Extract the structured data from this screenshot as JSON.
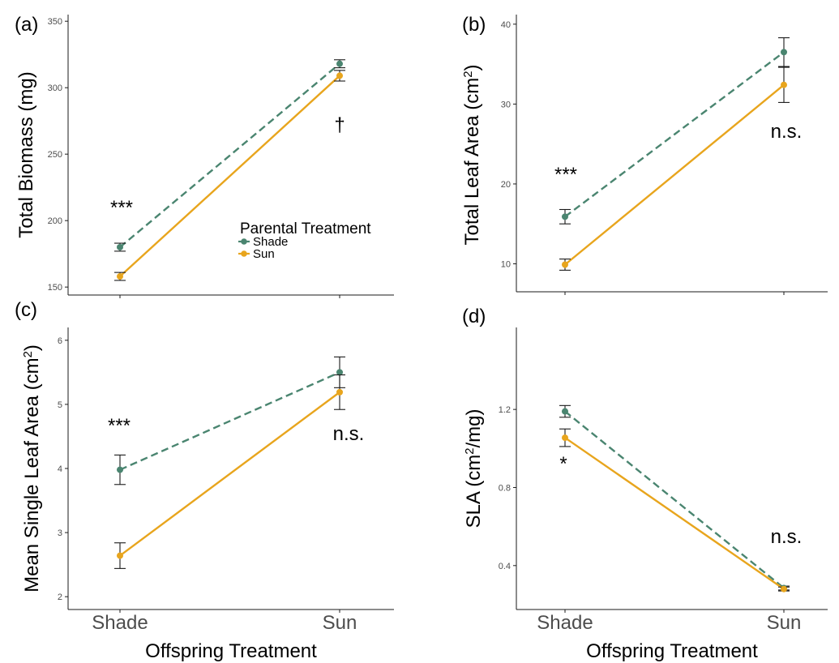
{
  "colors": {
    "Shade": "#4a8570",
    "Sun": "#e8a51d",
    "errorbar": "#1a1a1a",
    "axis": "#1a1a1a"
  },
  "legend": {
    "title": "Parental Treatment",
    "items": [
      "Shade",
      "Sun"
    ]
  },
  "x_axis_title": "Offspring Treatment",
  "chart_data": [
    {
      "tag": "(a)",
      "type": "line",
      "ylabel": "Total Biomass (mg)",
      "categories": [
        "Shade",
        "Sun"
      ],
      "ylim": [
        144,
        355
      ],
      "yticks": [
        150,
        200,
        250,
        300,
        350
      ],
      "series": [
        {
          "name": "Shade",
          "values": [
            180,
            318
          ],
          "err": [
            3,
            3
          ],
          "dash": true
        },
        {
          "name": "Sun",
          "values": [
            158,
            309
          ],
          "err": [
            3,
            4
          ],
          "dash": false
        }
      ],
      "annotations": [
        "***",
        "†"
      ],
      "legend": true,
      "xlabels": false
    },
    {
      "tag": "(b)",
      "type": "line",
      "ylabel": "Total Leaf Area (cm²)",
      "categories": [
        "Shade",
        "Sun"
      ],
      "ylim": [
        6.5,
        41.2
      ],
      "yticks": [
        10,
        20,
        30,
        40
      ],
      "series": [
        {
          "name": "Shade",
          "values": [
            15.9,
            36.5
          ],
          "err": [
            0.9,
            1.8
          ],
          "dash": true
        },
        {
          "name": "Sun",
          "values": [
            9.9,
            32.4
          ],
          "err": [
            0.7,
            2.2
          ],
          "dash": false
        }
      ],
      "annotations": [
        "***",
        "n.s."
      ],
      "legend": false,
      "xlabels": false
    },
    {
      "tag": "(c)",
      "type": "line",
      "ylabel": "Mean Single Leaf Area (cm²)",
      "categories": [
        "Shade",
        "Sun"
      ],
      "ylim": [
        1.8,
        6.2
      ],
      "yticks": [
        2,
        3,
        4,
        5,
        6
      ],
      "series": [
        {
          "name": "Shade",
          "values": [
            3.98,
            5.5
          ],
          "err": [
            0.23,
            0.24
          ],
          "dash": true
        },
        {
          "name": "Sun",
          "values": [
            2.64,
            5.19
          ],
          "err": [
            0.2,
            0.27
          ],
          "dash": false
        }
      ],
      "annotations": [
        "***",
        "n.s."
      ],
      "legend": false,
      "xlabels": true
    },
    {
      "tag": "(d)",
      "type": "line",
      "ylabel": "SLA (cm²/mg)",
      "categories": [
        "Shade",
        "Sun"
      ],
      "ylim": [
        0.175,
        1.62
      ],
      "yticks": [
        0.4,
        0.8,
        1.2
      ],
      "series": [
        {
          "name": "Shade",
          "values": [
            1.19,
            0.285
          ],
          "err": [
            0.03,
            0.01
          ],
          "dash": true
        },
        {
          "name": "Sun",
          "values": [
            1.055,
            0.28
          ],
          "err": [
            0.045,
            0.01
          ],
          "dash": false
        }
      ],
      "annotations": [
        "*",
        "n.s."
      ],
      "legend": false,
      "xlabels": true
    }
  ]
}
